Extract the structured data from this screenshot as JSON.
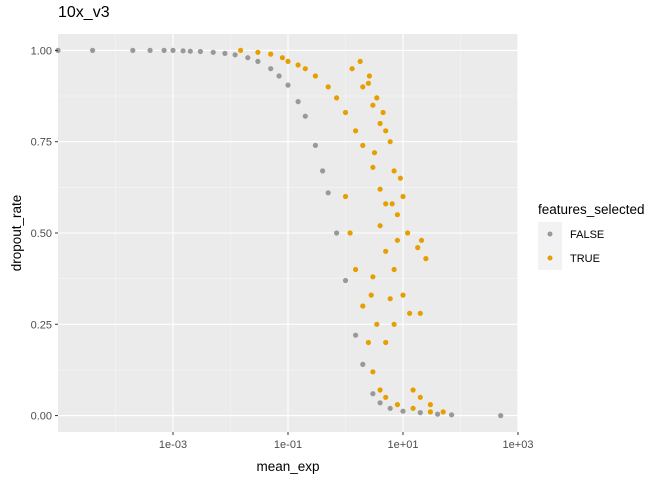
{
  "chart_data": {
    "type": "scatter",
    "title": "10x_v3",
    "xlabel": "mean_exp",
    "ylabel": "dropout_rate",
    "x_scale": "log10",
    "xlim": [
      1e-05,
      1000
    ],
    "ylim": [
      -0.045,
      1.045
    ],
    "x_ticks": [
      0.001,
      0.1,
      10,
      1000
    ],
    "x_tick_labels": [
      "1e-03",
      "1e-01",
      "1e+01",
      "1e+03"
    ],
    "y_ticks": [
      0,
      0.25,
      0.5,
      0.75,
      1
    ],
    "y_tick_labels": [
      "0.00",
      "0.25",
      "0.50",
      "0.75",
      "1.00"
    ],
    "grid": true,
    "legend": {
      "title": "features_selected",
      "placement": "right",
      "entries": [
        {
          "label": "FALSE",
          "color": "#999999"
        },
        {
          "label": "TRUE",
          "color": "#E69F00"
        }
      ]
    },
    "series": [
      {
        "name": "FALSE",
        "color": "#999999",
        "points": [
          [
            1e-05,
            1.0
          ],
          [
            4e-05,
            1.0
          ],
          [
            0.0002,
            1.0
          ],
          [
            0.0004,
            1.0
          ],
          [
            0.0007,
            1.0
          ],
          [
            0.001,
            1.0
          ],
          [
            0.0015,
            0.999
          ],
          [
            0.002,
            0.998
          ],
          [
            0.003,
            0.997
          ],
          [
            0.005,
            0.995
          ],
          [
            0.008,
            0.992
          ],
          [
            0.012,
            0.988
          ],
          [
            0.02,
            0.98
          ],
          [
            0.03,
            0.97
          ],
          [
            0.05,
            0.95
          ],
          [
            0.07,
            0.93
          ],
          [
            0.1,
            0.905
          ],
          [
            0.15,
            0.86
          ],
          [
            0.2,
            0.82
          ],
          [
            0.3,
            0.74
          ],
          [
            0.4,
            0.67
          ],
          [
            0.5,
            0.61
          ],
          [
            0.7,
            0.5
          ],
          [
            1.0,
            0.37
          ],
          [
            1.5,
            0.22
          ],
          [
            2.0,
            0.14
          ],
          [
            3.0,
            0.06
          ],
          [
            4.0,
            0.035
          ],
          [
            6.0,
            0.02
          ],
          [
            10,
            0.012
          ],
          [
            20,
            0.008
          ],
          [
            40,
            0.004
          ],
          [
            70,
            0.002
          ],
          [
            500,
            0.0
          ]
        ]
      },
      {
        "name": "TRUE",
        "color": "#E69F00",
        "points": [
          [
            0.015,
            1.0
          ],
          [
            0.03,
            0.995
          ],
          [
            0.05,
            0.99
          ],
          [
            0.08,
            0.98
          ],
          [
            0.1,
            0.97
          ],
          [
            0.15,
            0.96
          ],
          [
            0.2,
            0.95
          ],
          [
            0.3,
            0.93
          ],
          [
            0.5,
            0.9
          ],
          [
            0.7,
            0.87
          ],
          [
            1.0,
            0.83
          ],
          [
            1.5,
            0.78
          ],
          [
            2.0,
            0.74
          ],
          [
            3.0,
            0.68
          ],
          [
            4.0,
            0.62
          ],
          [
            5.0,
            0.58
          ],
          [
            1.0,
            0.6
          ],
          [
            1.2,
            0.5
          ],
          [
            1.5,
            0.4
          ],
          [
            2.0,
            0.3
          ],
          [
            2.5,
            0.2
          ],
          [
            3.0,
            0.12
          ],
          [
            4.0,
            0.07
          ],
          [
            5.0,
            0.05
          ],
          [
            8.0,
            0.03
          ],
          [
            15,
            0.02
          ],
          [
            30,
            0.01
          ],
          [
            1.3,
            0.95
          ],
          [
            2.0,
            0.9
          ],
          [
            3.0,
            0.85
          ],
          [
            4.0,
            0.8
          ],
          [
            6.0,
            0.75
          ],
          [
            2.5,
            0.91
          ],
          [
            3.5,
            0.87
          ],
          [
            5.0,
            0.78
          ],
          [
            7.0,
            0.67
          ],
          [
            1.8,
            0.97
          ],
          [
            2.6,
            0.93
          ],
          [
            4.5,
            0.83
          ],
          [
            3.2,
            0.72
          ],
          [
            6.5,
            0.58
          ],
          [
            8.0,
            0.55
          ],
          [
            10,
            0.6
          ],
          [
            12,
            0.5
          ],
          [
            9.0,
            0.65
          ],
          [
            5.0,
            0.45
          ],
          [
            7.0,
            0.4
          ],
          [
            10,
            0.33
          ],
          [
            13,
            0.28
          ],
          [
            8.0,
            0.48
          ],
          [
            4.0,
            0.52
          ],
          [
            3.0,
            0.38
          ],
          [
            6.0,
            0.32
          ],
          [
            5.0,
            0.2
          ],
          [
            3.5,
            0.25
          ],
          [
            2.8,
            0.33
          ],
          [
            7.0,
            0.25
          ],
          [
            18,
            0.46
          ],
          [
            21,
            0.48
          ],
          [
            25,
            0.43
          ],
          [
            20,
            0.28
          ],
          [
            15,
            0.07
          ],
          [
            20,
            0.05
          ],
          [
            30,
            0.03
          ],
          [
            50,
            0.01
          ]
        ]
      }
    ]
  }
}
